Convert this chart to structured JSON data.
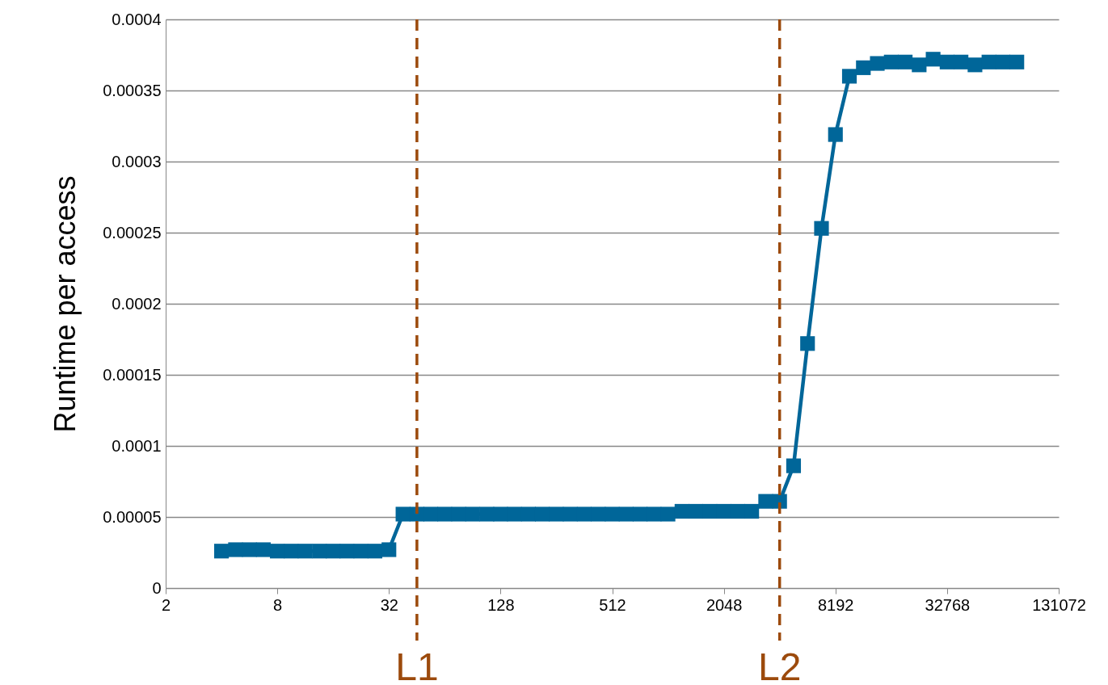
{
  "chart_data": {
    "type": "line",
    "ylabel": "Runtime per access",
    "log": "x",
    "grid": "y",
    "marker": "square",
    "line_style": "solid",
    "x": [
      4,
      4.76,
      5.66,
      6.73,
      8,
      9.51,
      11.3,
      13.5,
      16,
      19,
      22.6,
      26.9,
      32,
      38.1,
      45.3,
      53.8,
      64,
      76.1,
      90.5,
      108,
      128,
      152,
      181,
      215,
      256,
      304,
      362,
      431,
      512,
      609,
      724,
      861,
      1024,
      1218,
      1448,
      1722,
      2048,
      2436,
      2896,
      3444,
      4096,
      4871,
      5793,
      6889,
      8192,
      9742,
      11585,
      13777,
      16384,
      19484,
      23170,
      27554,
      32768,
      38968,
      46341,
      55109,
      65536,
      77936
    ],
    "series": [
      {
        "color": "#006699",
        "values": [
          2.6e-05,
          2.7e-05,
          2.7e-05,
          2.7e-05,
          2.6e-05,
          2.6e-05,
          2.6e-05,
          2.6e-05,
          2.6e-05,
          2.6e-05,
          2.6e-05,
          2.6e-05,
          2.7e-05,
          5.2e-05,
          5.2e-05,
          5.2e-05,
          5.2e-05,
          5.2e-05,
          5.2e-05,
          5.2e-05,
          5.2e-05,
          5.2e-05,
          5.2e-05,
          5.2e-05,
          5.2e-05,
          5.2e-05,
          5.2e-05,
          5.2e-05,
          5.2e-05,
          5.2e-05,
          5.2e-05,
          5.2e-05,
          5.2e-05,
          5.4e-05,
          5.4e-05,
          5.4e-05,
          5.4e-05,
          5.4e-05,
          5.4e-05,
          6.1e-05,
          6.1e-05,
          8.6e-05,
          0.000172,
          0.000253,
          0.000319,
          0.00036,
          0.000366,
          0.000369,
          0.00037,
          0.00037,
          0.000368,
          0.000372,
          0.00037,
          0.00037,
          0.000368,
          0.00037,
          0.00037,
          0.00037
        ]
      }
    ],
    "xlim": [
      2,
      131072
    ],
    "xticks": [
      2,
      8,
      32,
      128,
      512,
      2048,
      8192,
      32768,
      131072
    ],
    "ylim": [
      0,
      0.0004
    ],
    "yticks": [
      0,
      {
        "value": 5e-05,
        "label": "0.00005"
      },
      0.0001,
      0.00015,
      0.0002,
      0.00025,
      0.0003,
      0.00035,
      0.0004
    ],
    "ref_lines": [
      {
        "axis": "x",
        "value": 45.3,
        "label": "L1",
        "color": "#9c4a0c",
        "line_style": "dashed"
      },
      {
        "axis": "x",
        "value": 4096,
        "label": "L2",
        "color": "#9c4a0c",
        "line_style": "dashed"
      }
    ]
  }
}
